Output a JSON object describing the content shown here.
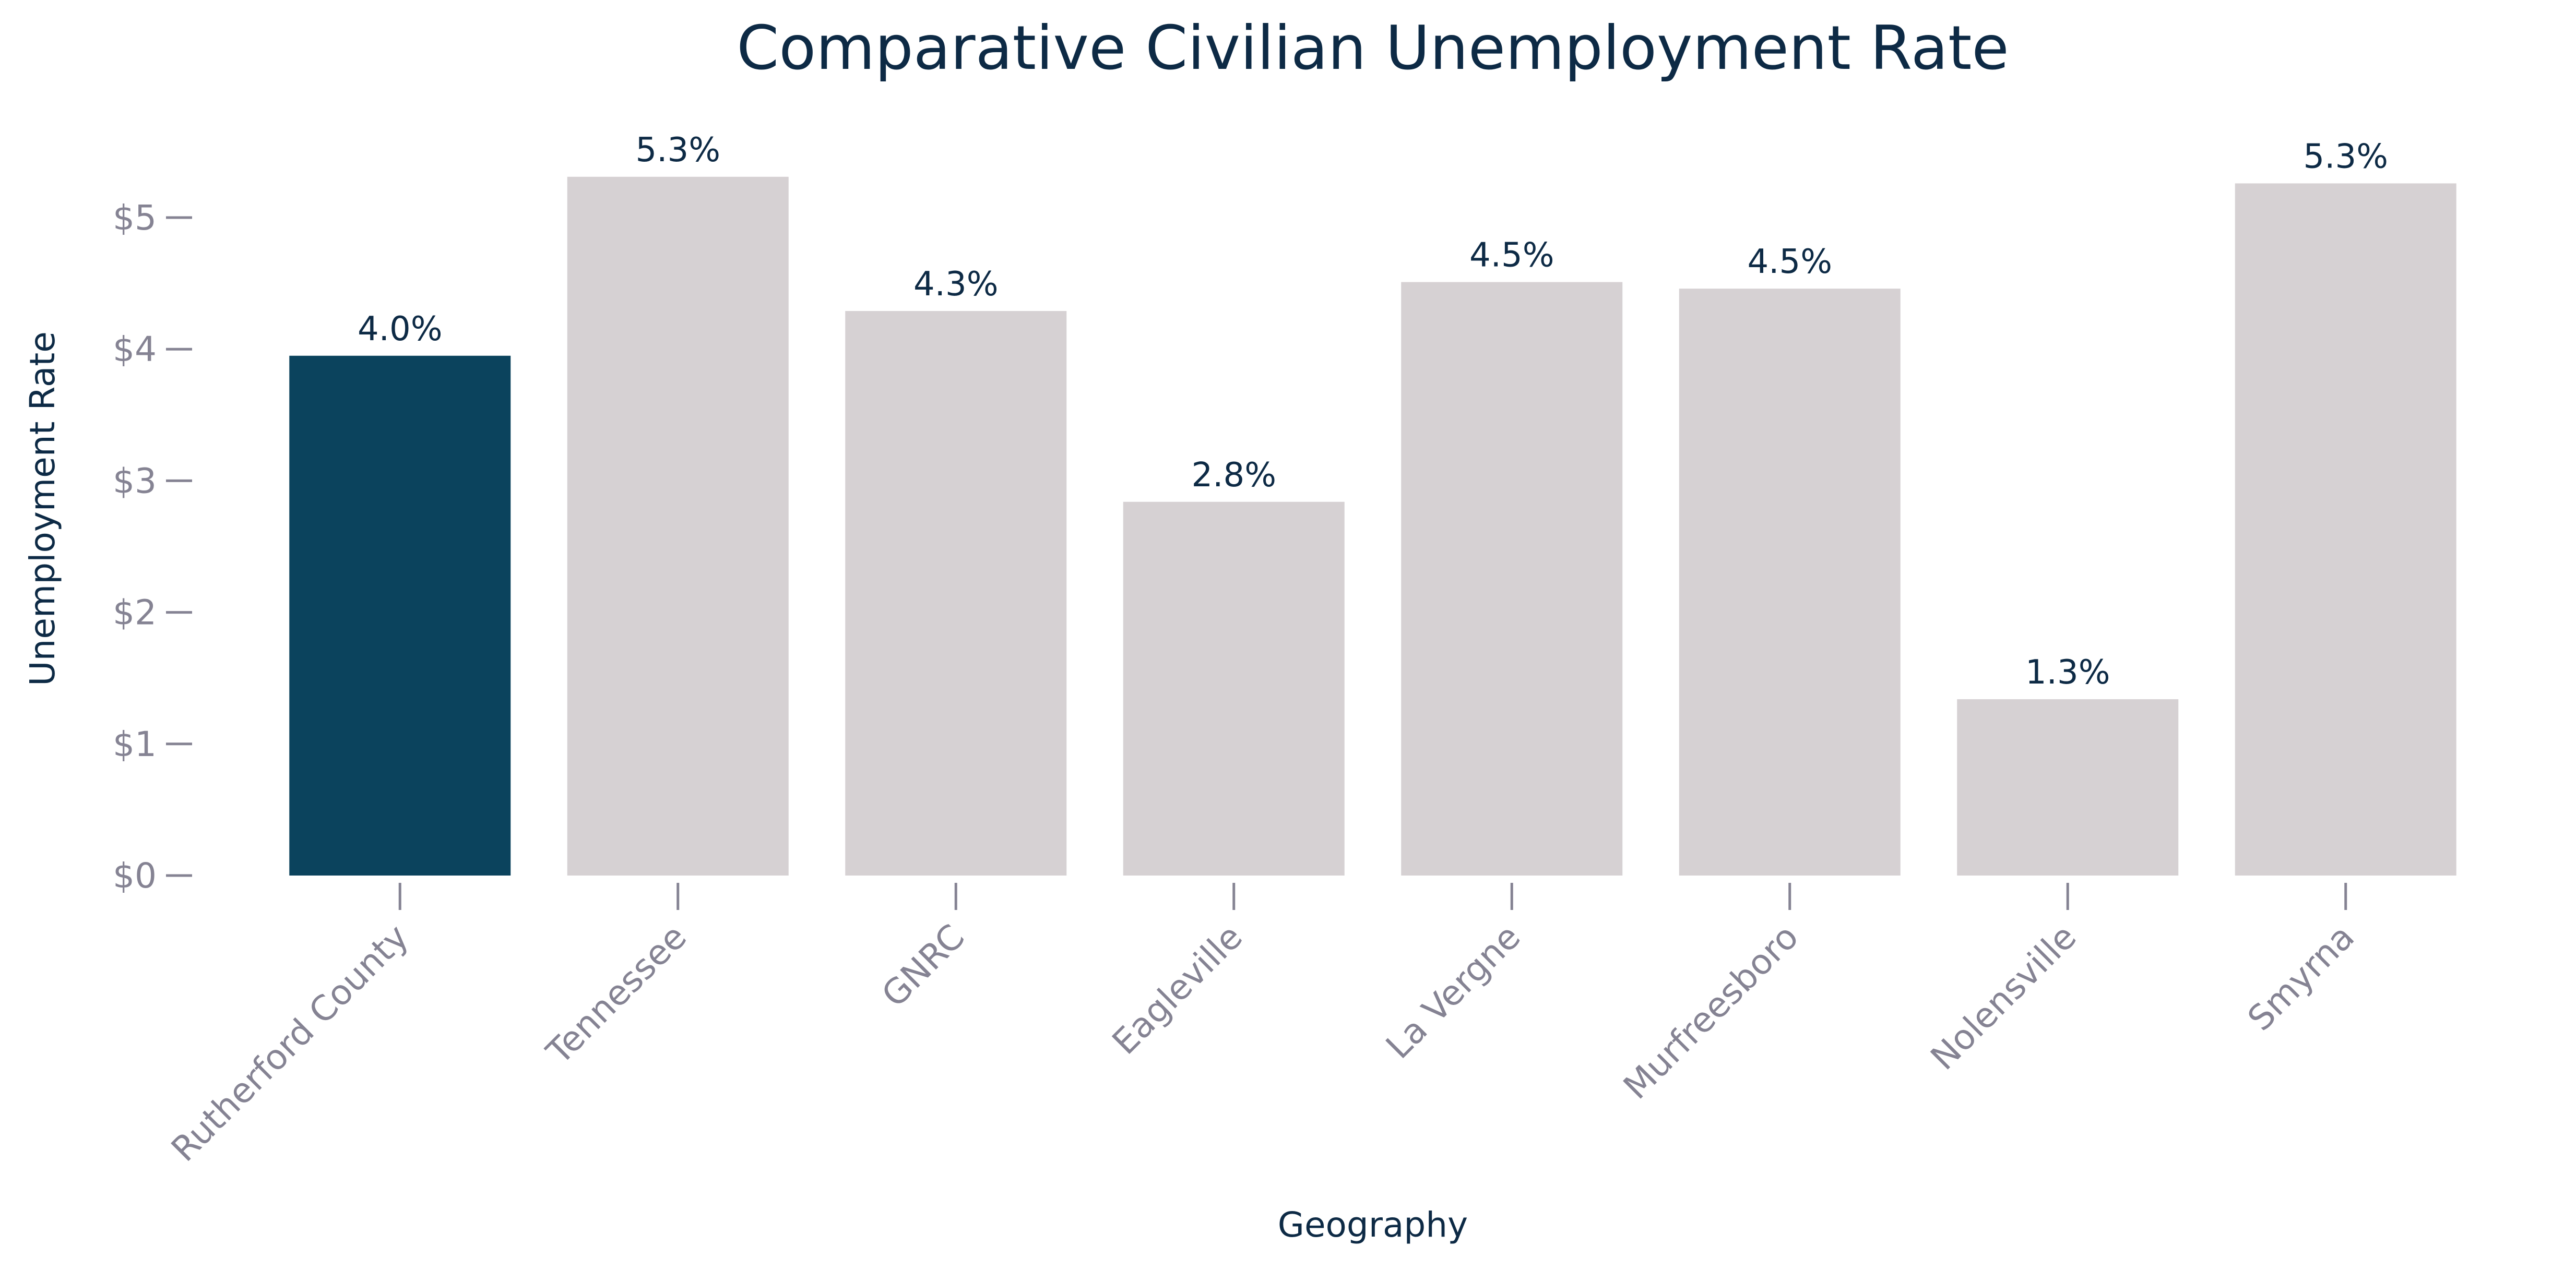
{
  "chart_data": {
    "type": "bar",
    "title": "Comparative Civilian Unemployment Rate",
    "xlabel": "Geography",
    "ylabel": "Unemployment Rate",
    "categories": [
      "Rutherford County",
      "Tennessee",
      "GNRC",
      "Eagleville",
      "La Vergne",
      "Murfreesboro",
      "Nolensville",
      "Smyrna"
    ],
    "values": [
      3.95,
      5.31,
      4.29,
      2.84,
      4.51,
      4.46,
      1.34,
      5.26
    ],
    "data_labels": [
      "4.0%",
      "5.3%",
      "4.3%",
      "2.8%",
      "4.5%",
      "4.5%",
      "1.3%",
      "5.3%"
    ],
    "yticks": [
      0,
      1,
      2,
      3,
      4,
      5
    ],
    "ytick_labels": [
      "$0",
      "$1",
      "$2",
      "$3",
      "$4",
      "$5"
    ],
    "ylim": [
      0,
      5.5
    ],
    "grid": false,
    "legend": "none",
    "colors": {
      "highlight": "#0b435d",
      "default": "#d6d1d3",
      "title": "#0d2a45",
      "tick": "#858393"
    },
    "highlight_index": 0
  }
}
